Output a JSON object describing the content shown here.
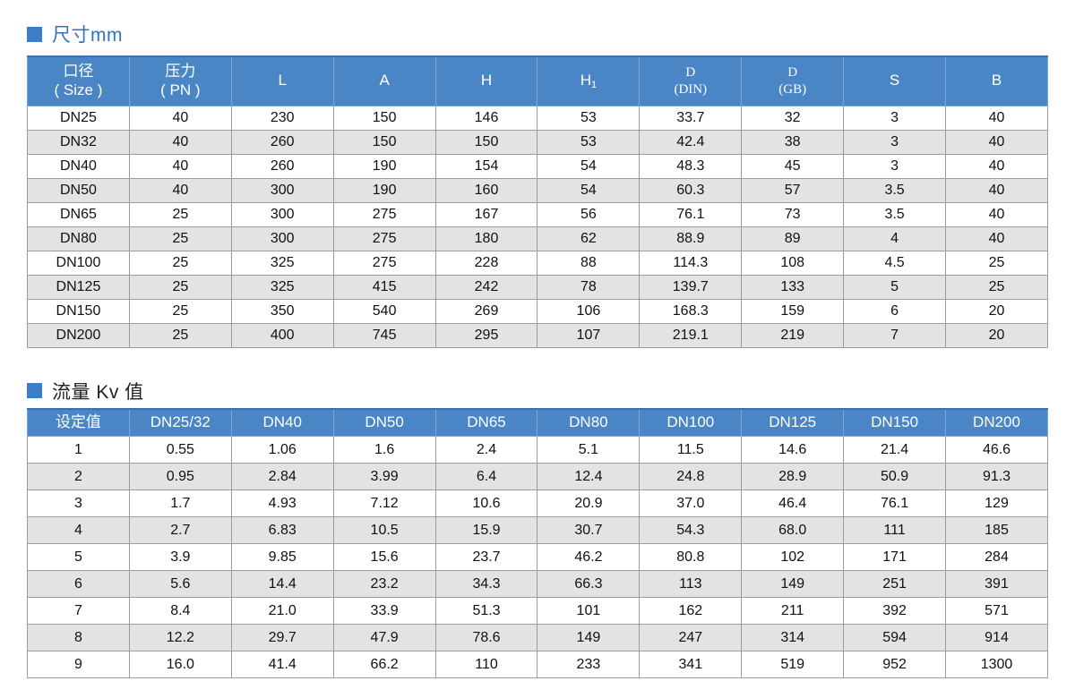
{
  "colors": {
    "header_bg": "#4a86c6",
    "header_border": "#7fa6d9",
    "header_top_border": "#3a6fb0",
    "row_alt_bg": "#e3e3e3",
    "cell_border": "#9b9b9b",
    "square_color": "#3c7dc8",
    "title1_color": "#2d74c4",
    "title2_color": "#1f1f1f"
  },
  "sections": [
    {
      "title": "尺寸mm",
      "table": {
        "headers": [
          {
            "line1": "口径",
            "line2": "( Size )"
          },
          {
            "line1": "压力",
            "line2": "( PN )"
          },
          {
            "line1": "L"
          },
          {
            "line1": "A"
          },
          {
            "line1": "H"
          },
          {
            "line1": "H",
            "sub": "1"
          },
          {
            "line1": "D",
            "line2": "(DIN)",
            "serif": true
          },
          {
            "line1": "D",
            "line2": "(GB)",
            "serif": true
          },
          {
            "line1": "S"
          },
          {
            "line1": "B"
          }
        ],
        "rows": [
          [
            "DN25",
            "40",
            "230",
            "150",
            "146",
            "53",
            "33.7",
            "32",
            "3",
            "40"
          ],
          [
            "DN32",
            "40",
            "260",
            "150",
            "150",
            "53",
            "42.4",
            "38",
            "3",
            "40"
          ],
          [
            "DN40",
            "40",
            "260",
            "190",
            "154",
            "54",
            "48.3",
            "45",
            "3",
            "40"
          ],
          [
            "DN50",
            "40",
            "300",
            "190",
            "160",
            "54",
            "60.3",
            "57",
            "3.5",
            "40"
          ],
          [
            "DN65",
            "25",
            "300",
            "275",
            "167",
            "56",
            "76.1",
            "73",
            "3.5",
            "40"
          ],
          [
            "DN80",
            "25",
            "300",
            "275",
            "180",
            "62",
            "88.9",
            "89",
            "4",
            "40"
          ],
          [
            "DN100",
            "25",
            "325",
            "275",
            "228",
            "88",
            "114.3",
            "108",
            "4.5",
            "25"
          ],
          [
            "DN125",
            "25",
            "325",
            "415",
            "242",
            "78",
            "139.7",
            "133",
            "5",
            "25"
          ],
          [
            "DN150",
            "25",
            "350",
            "540",
            "269",
            "106",
            "168.3",
            "159",
            "6",
            "20"
          ],
          [
            "DN200",
            "25",
            "400",
            "745",
            "295",
            "107",
            "219.1",
            "219",
            "7",
            "20"
          ]
        ]
      }
    },
    {
      "title": "流量 Kv 值",
      "table": {
        "headers": [
          {
            "line1": "设定值"
          },
          {
            "line1": "DN25/32"
          },
          {
            "line1": "DN40"
          },
          {
            "line1": "DN50"
          },
          {
            "line1": "DN65"
          },
          {
            "line1": "DN80"
          },
          {
            "line1": "DN100"
          },
          {
            "line1": "DN125"
          },
          {
            "line1": "DN150"
          },
          {
            "line1": "DN200"
          }
        ],
        "rows": [
          [
            "1",
            "0.55",
            "1.06",
            "1.6",
            "2.4",
            "5.1",
            "11.5",
            "14.6",
            "21.4",
            "46.6"
          ],
          [
            "2",
            "0.95",
            "2.84",
            "3.99",
            "6.4",
            "12.4",
            "24.8",
            "28.9",
            "50.9",
            "91.3"
          ],
          [
            "3",
            "1.7",
            "4.93",
            "7.12",
            "10.6",
            "20.9",
            "37.0",
            "46.4",
            "76.1",
            "129"
          ],
          [
            "4",
            "2.7",
            "6.83",
            "10.5",
            "15.9",
            "30.7",
            "54.3",
            "68.0",
            "111",
            "185"
          ],
          [
            "5",
            "3.9",
            "9.85",
            "15.6",
            "23.7",
            "46.2",
            "80.8",
            "102",
            "171",
            "284"
          ],
          [
            "6",
            "5.6",
            "14.4",
            "23.2",
            "34.3",
            "66.3",
            "113",
            "149",
            "251",
            "391"
          ],
          [
            "7",
            "8.4",
            "21.0",
            "33.9",
            "51.3",
            "101",
            "162",
            "211",
            "392",
            "571"
          ],
          [
            "8",
            "12.2",
            "29.7",
            "47.9",
            "78.6",
            "149",
            "247",
            "314",
            "594",
            "914"
          ],
          [
            "9",
            "16.0",
            "41.4",
            "66.2",
            "110",
            "233",
            "341",
            "519",
            "952",
            "1300"
          ]
        ]
      }
    }
  ]
}
